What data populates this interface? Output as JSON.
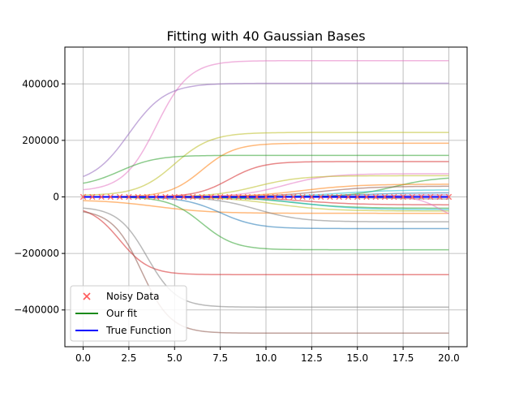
{
  "chart_data": {
    "type": "line",
    "title": "Fitting with 40 Gaussian Bases",
    "xlabel": "",
    "ylabel": "",
    "xlim": [
      -1,
      21
    ],
    "ylim": [
      -530000,
      530000
    ],
    "xticks": [
      0,
      2.5,
      5,
      7.5,
      10,
      12.5,
      15,
      17.5,
      20
    ],
    "xtick_labels": [
      "0.0",
      "2.5",
      "5.0",
      "7.5",
      "10.0",
      "12.5",
      "15.0",
      "17.5",
      "20.0"
    ],
    "yticks": [
      -400000,
      -200000,
      0,
      200000,
      400000
    ],
    "ytick_labels": [
      "−400000",
      "−200000",
      "0",
      "200000",
      "400000"
    ],
    "grid": true,
    "legend_position": "lower-left",
    "legend": [
      {
        "label": "Noisy Data",
        "marker": "x",
        "color": "#ff5a5a"
      },
      {
        "label": "Our fit",
        "marker": "line",
        "color": "#1a8a1a"
      },
      {
        "label": "True Function",
        "marker": "line",
        "color": "#0000ff"
      }
    ],
    "noisy_data": {
      "color": "#ff5a5a",
      "x_start": 0,
      "x_end": 20,
      "count": 41,
      "y": 0
    },
    "our_fit": {
      "color": "#1a8a1a",
      "x": [
        0,
        20
      ],
      "y": [
        0,
        0
      ]
    },
    "true_function": {
      "color": "#0000ff",
      "x": [
        0,
        20
      ],
      "y": [
        0,
        0
      ]
    },
    "basis_curves": [
      {
        "color": "#e377c2",
        "start": 20000,
        "end": 482000,
        "center": 4.0,
        "width": 0.9
      },
      {
        "color": "#9467bd",
        "start": 45000,
        "end": 402000,
        "center": 2.5,
        "width": 1.0
      },
      {
        "color": "#bcbd22",
        "start": 5000,
        "end": 228000,
        "center": 5.0,
        "width": 1.0
      },
      {
        "color": "#ff7f0e",
        "start": 0,
        "end": 190000,
        "center": 6.5,
        "width": 0.9
      },
      {
        "color": "#2ca02c",
        "start": 35000,
        "end": 147000,
        "center": 2.0,
        "width": 1.0
      },
      {
        "color": "#d62728",
        "start": 0,
        "end": 125000,
        "center": 8.0,
        "width": 0.9
      },
      {
        "color": "#e377c2",
        "start": 0,
        "end": 82000,
        "center": 11.0,
        "width": 1.2
      },
      {
        "color": "#bcbd22",
        "start": 0,
        "end": 75000,
        "center": 9.5,
        "width": 1.2
      },
      {
        "color": "#2ca02c",
        "start": 0,
        "end": 72000,
        "center": 17.0,
        "width": 1.2
      },
      {
        "color": "#ff7f0e",
        "start": 0,
        "end": 45000,
        "center": 12.0,
        "width": 1.5
      },
      {
        "color": "#8c564b",
        "start": 0,
        "end": 38000,
        "center": 13.0,
        "width": 1.5
      },
      {
        "color": "#17becf",
        "start": 0,
        "end": 25000,
        "center": 14.0,
        "width": 1.5
      },
      {
        "color": "#1f77b4",
        "start": 0,
        "end": 15000,
        "center": 15.0,
        "width": 1.5
      },
      {
        "color": "#9467bd",
        "start": 0,
        "end": 8000,
        "center": 16.0,
        "width": 1.5
      },
      {
        "color": "#7f7f7f",
        "start": 0,
        "end": -8000,
        "center": 16.0,
        "width": 1.5
      },
      {
        "color": "#d62728",
        "start": 0,
        "end": -28000,
        "center": 12.0,
        "width": 1.5
      },
      {
        "color": "#2ca02c",
        "start": 0,
        "end": -40000,
        "center": 11.5,
        "width": 1.5
      },
      {
        "color": "#17becf",
        "start": 0,
        "end": -45000,
        "center": 12.0,
        "width": 1.5
      },
      {
        "color": "#bcbd22",
        "start": 0,
        "end": -50000,
        "center": 10.5,
        "width": 1.5
      },
      {
        "color": "#ff7f0e",
        "start": -10000,
        "end": -58000,
        "center": 4.0,
        "width": 1.5
      },
      {
        "color": "#e377c2",
        "start": 0,
        "end": -85000,
        "center": 19.5,
        "width": 0.6
      },
      {
        "color": "#7f7f7f",
        "start": 0,
        "end": -88000,
        "center": 9.5,
        "width": 1.2
      },
      {
        "color": "#1f77b4",
        "start": 0,
        "end": -112000,
        "center": 7.5,
        "width": 1.0
      },
      {
        "color": "#2ca02c",
        "start": 0,
        "end": -187000,
        "center": 6.5,
        "width": 0.9
      },
      {
        "color": "#d62728",
        "start": -30000,
        "end": -275000,
        "center": 2.0,
        "width": 0.8
      },
      {
        "color": "#7f7f7f",
        "start": -35000,
        "end": -390000,
        "center": 3.5,
        "width": 0.8
      },
      {
        "color": "#8c564b",
        "start": -45000,
        "end": -482000,
        "center": 3.2,
        "width": 0.8
      }
    ]
  }
}
